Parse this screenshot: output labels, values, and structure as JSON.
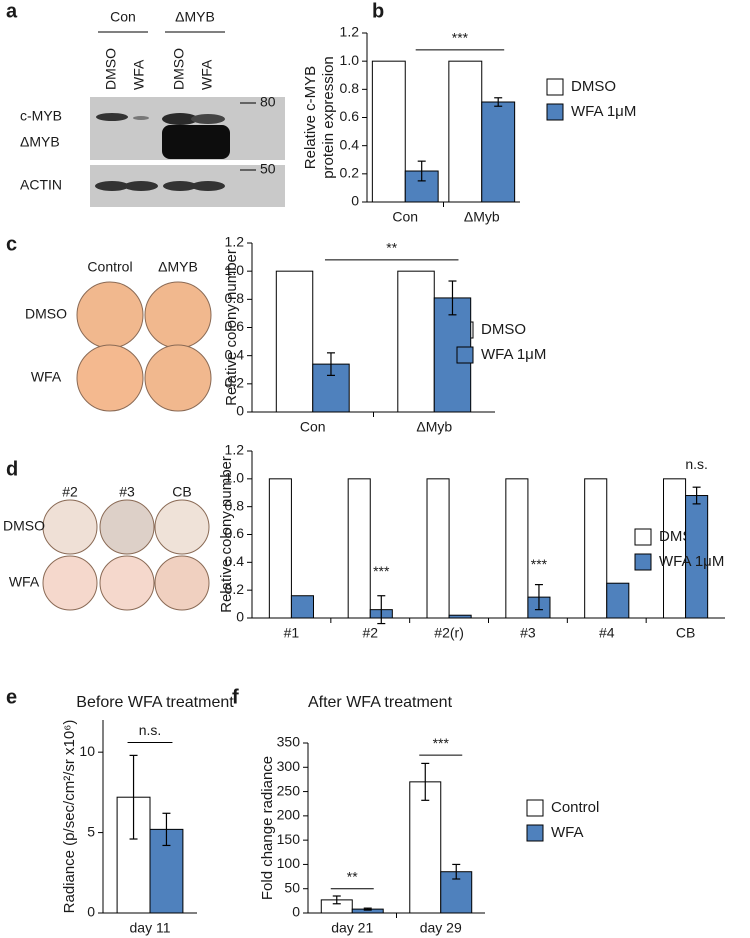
{
  "panel_labels": [
    "a",
    "b",
    "c",
    "d",
    "e",
    "f"
  ],
  "blot": {
    "groups": [
      "Con",
      "ΔMYB"
    ],
    "lanes": [
      "DMSO",
      "WFA",
      "DMSO",
      "WFA"
    ],
    "bands": [
      "c-MYB",
      "ΔMYB",
      "ACTIN"
    ],
    "markers": [
      "80",
      "50"
    ]
  },
  "plates_c": {
    "columns": [
      "Control",
      "ΔMYB"
    ],
    "rows": [
      "DMSO",
      "WFA"
    ]
  },
  "plates_d": {
    "columns": [
      "#2",
      "#3",
      "CB"
    ],
    "rows": [
      "DMSO",
      "WFA"
    ]
  },
  "chart_data": [
    {
      "type": "bar",
      "ylabel": [
        "Relative c-MYB",
        "protein expression"
      ],
      "categories": [
        "Con",
        "ΔMyb"
      ],
      "series": [
        {
          "name": "DMSO",
          "color": "#ffffff",
          "values": [
            1,
            1
          ],
          "errors": [
            null,
            null
          ]
        },
        {
          "name": "WFA 1μM",
          "color": "#4f81bd",
          "values": [
            0.22,
            0.71
          ],
          "errors": [
            0.07,
            0.03
          ]
        }
      ],
      "ylim": [
        0,
        1.2
      ],
      "yticks": [
        0,
        0.2,
        0.4,
        0.6,
        0.8,
        {
          "value": 1,
          "label": "1.0"
        },
        1.2
      ],
      "annotations": [
        "***"
      ],
      "legend": "right"
    },
    {
      "type": "bar",
      "ylabel": [
        "Relative colony number"
      ],
      "categories": [
        "Con",
        "ΔMyb"
      ],
      "series": [
        {
          "name": "DMSO",
          "color": "#ffffff",
          "values": [
            1,
            1
          ],
          "errors": [
            null,
            null
          ]
        },
        {
          "name": "WFA 1μM",
          "color": "#4f81bd",
          "values": [
            0.34,
            0.81
          ],
          "errors": [
            0.08,
            0.12
          ]
        }
      ],
      "ylim": [
        0,
        1.2
      ],
      "yticks": [
        0,
        0.2,
        0.4,
        0.6,
        0.8,
        {
          "value": 1,
          "label": "1.0"
        },
        1.2
      ],
      "annotations": [
        "**"
      ],
      "legend": "right"
    },
    {
      "type": "bar",
      "ylabel": [
        "Relative colony number"
      ],
      "categories": [
        "#1",
        "#2",
        "#2(r)",
        "#3",
        "#4",
        "CB"
      ],
      "series": [
        {
          "name": "DMSO",
          "color": "#ffffff",
          "values": [
            1,
            1,
            1,
            1,
            1,
            1
          ],
          "errors": [
            null,
            null,
            null,
            null,
            null,
            null
          ]
        },
        {
          "name": "WFA 1μM",
          "color": "#4f81bd",
          "values": [
            0.16,
            0.06,
            0.02,
            0.15,
            0.25,
            0.88
          ],
          "errors": [
            null,
            0.1,
            null,
            0.09,
            null,
            0.06
          ]
        }
      ],
      "ylim": [
        0,
        1.2
      ],
      "yticks": [
        0,
        0.2,
        0.4,
        0.6,
        0.8,
        {
          "value": 1,
          "label": "1.0"
        },
        1.2
      ],
      "annotations": [
        "***",
        "***",
        "n.s."
      ],
      "legend": "right"
    },
    {
      "type": "bar",
      "title": "Before WFA treatment",
      "ylabel": [
        "Radiance (p/sec/cm²/sr x10⁶)"
      ],
      "categories": [
        "day 11"
      ],
      "series": [
        {
          "color": "#ffffff",
          "values": [
            7.2
          ],
          "errors": [
            2.6
          ]
        },
        {
          "color": "#4f81bd",
          "values": [
            5.2
          ],
          "errors": [
            1.0
          ]
        }
      ],
      "ylim": [
        0,
        12
      ],
      "yticks": [
        0,
        5,
        10
      ],
      "annotations": [
        "n.s."
      ]
    },
    {
      "type": "bar",
      "title": "After WFA treatment",
      "ylabel": [
        "Fold change radiance"
      ],
      "categories": [
        "day 21",
        "day 29"
      ],
      "series": [
        {
          "name": "Control",
          "color": "#ffffff",
          "values": [
            27,
            270
          ],
          "errors": [
            8,
            38
          ]
        },
        {
          "name": "WFA",
          "color": "#4f81bd",
          "values": [
            8,
            85
          ],
          "errors": [
            2,
            15
          ]
        }
      ],
      "ylim": [
        0,
        350
      ],
      "yticks": [
        0,
        50,
        100,
        150,
        200,
        250,
        300,
        350
      ],
      "annotations": [
        "**",
        "***"
      ],
      "legend": "right"
    }
  ]
}
